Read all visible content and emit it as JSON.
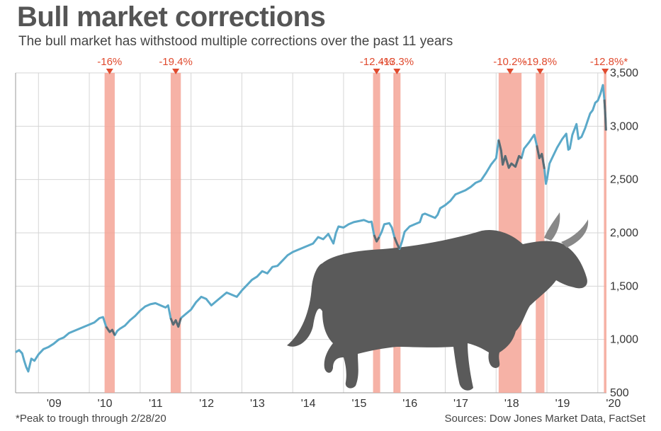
{
  "header": {
    "title": "Bull market corrections",
    "subtitle": "The bull market has withstood multiple corrections over the past 11 years"
  },
  "footer": {
    "footnote": "*Peak to trough through 2/28/20",
    "source": "Sources: Dow Jones Market Data, FactSet"
  },
  "colors": {
    "line": "#5ba9c9",
    "line_in_correction": "#5a6a72",
    "correction_band": "#f4a597",
    "correction_label": "#e04a2e",
    "grid": "#d6d6d6",
    "bull": "#5a5a5a"
  },
  "illustration": {
    "icon": "bull-icon"
  },
  "chart_data": {
    "type": "line",
    "title": "Bull market corrections",
    "subtitle": "The bull market has withstood multiple corrections over the past 11 years",
    "xlim": [
      2008.55,
      2020.17
    ],
    "ylim": [
      500,
      3500
    ],
    "yticks": [
      500,
      1000,
      1500,
      2000,
      2500,
      3000,
      3500
    ],
    "ytick_labels": [
      "500",
      "1,000",
      "1,500",
      "2,000",
      "2,500",
      "3,000",
      "3,500"
    ],
    "xticks": [
      2009,
      2010,
      2011,
      2012,
      2013,
      2014,
      2015,
      2016,
      2017,
      2018,
      2019,
      2020
    ],
    "xtick_labels": [
      "'09",
      "'10",
      "'11",
      "'12",
      "'13",
      "'14",
      "'15",
      "'16",
      "'17",
      "'18",
      "'19",
      "'20"
    ],
    "grid": true,
    "y_axis_position": "right",
    "series": [
      {
        "values": [
          [
            2008.55,
            880
          ],
          [
            2008.62,
            900
          ],
          [
            2008.68,
            870
          ],
          [
            2008.72,
            800
          ],
          [
            2008.76,
            740
          ],
          [
            2008.8,
            700
          ],
          [
            2008.86,
            820
          ],
          [
            2008.92,
            800
          ],
          [
            2009.0,
            860
          ],
          [
            2009.1,
            910
          ],
          [
            2009.2,
            930
          ],
          [
            2009.3,
            960
          ],
          [
            2009.4,
            1000
          ],
          [
            2009.5,
            1020
          ],
          [
            2009.6,
            1060
          ],
          [
            2009.7,
            1080
          ],
          [
            2009.8,
            1100
          ],
          [
            2009.9,
            1120
          ],
          [
            2010.0,
            1140
          ],
          [
            2010.1,
            1160
          ],
          [
            2010.2,
            1200
          ],
          [
            2010.27,
            1210
          ],
          [
            2010.33,
            1120
          ],
          [
            2010.4,
            1070
          ],
          [
            2010.45,
            1090
          ],
          [
            2010.5,
            1040
          ],
          [
            2010.55,
            1080
          ],
          [
            2010.6,
            1100
          ],
          [
            2010.7,
            1130
          ],
          [
            2010.8,
            1180
          ],
          [
            2010.9,
            1220
          ],
          [
            2011.0,
            1270
          ],
          [
            2011.1,
            1310
          ],
          [
            2011.2,
            1330
          ],
          [
            2011.3,
            1340
          ],
          [
            2011.4,
            1320
          ],
          [
            2011.5,
            1300
          ],
          [
            2011.55,
            1320
          ],
          [
            2011.6,
            1200
          ],
          [
            2011.65,
            1140
          ],
          [
            2011.7,
            1180
          ],
          [
            2011.75,
            1120
          ],
          [
            2011.8,
            1200
          ],
          [
            2011.9,
            1240
          ],
          [
            2012.0,
            1280
          ],
          [
            2012.1,
            1350
          ],
          [
            2012.2,
            1400
          ],
          [
            2012.3,
            1380
          ],
          [
            2012.4,
            1320
          ],
          [
            2012.5,
            1360
          ],
          [
            2012.6,
            1400
          ],
          [
            2012.7,
            1440
          ],
          [
            2012.8,
            1420
          ],
          [
            2012.9,
            1400
          ],
          [
            2013.0,
            1460
          ],
          [
            2013.1,
            1510
          ],
          [
            2013.2,
            1560
          ],
          [
            2013.3,
            1590
          ],
          [
            2013.4,
            1640
          ],
          [
            2013.5,
            1620
          ],
          [
            2013.6,
            1680
          ],
          [
            2013.7,
            1690
          ],
          [
            2013.8,
            1740
          ],
          [
            2013.9,
            1790
          ],
          [
            2014.0,
            1820
          ],
          [
            2014.1,
            1840
          ],
          [
            2014.2,
            1860
          ],
          [
            2014.3,
            1880
          ],
          [
            2014.4,
            1900
          ],
          [
            2014.5,
            1960
          ],
          [
            2014.6,
            1940
          ],
          [
            2014.7,
            1990
          ],
          [
            2014.8,
            1900
          ],
          [
            2014.85,
            2000
          ],
          [
            2014.9,
            2060
          ],
          [
            2015.0,
            2050
          ],
          [
            2015.1,
            2080
          ],
          [
            2015.2,
            2100
          ],
          [
            2015.3,
            2110
          ],
          [
            2015.4,
            2120
          ],
          [
            2015.5,
            2100
          ],
          [
            2015.55,
            2105
          ],
          [
            2015.6,
            1980
          ],
          [
            2015.65,
            1920
          ],
          [
            2015.7,
            1960
          ],
          [
            2015.75,
            2010
          ],
          [
            2015.8,
            2080
          ],
          [
            2015.9,
            2090
          ],
          [
            2015.95,
            2050
          ],
          [
            2016.0,
            1960
          ],
          [
            2016.05,
            1900
          ],
          [
            2016.1,
            1850
          ],
          [
            2016.15,
            1920
          ],
          [
            2016.2,
            2010
          ],
          [
            2016.3,
            2060
          ],
          [
            2016.4,
            2080
          ],
          [
            2016.5,
            2100
          ],
          [
            2016.55,
            2170
          ],
          [
            2016.6,
            2180
          ],
          [
            2016.7,
            2160
          ],
          [
            2016.8,
            2140
          ],
          [
            2016.85,
            2170
          ],
          [
            2016.9,
            2230
          ],
          [
            2017.0,
            2260
          ],
          [
            2017.1,
            2300
          ],
          [
            2017.2,
            2360
          ],
          [
            2017.3,
            2380
          ],
          [
            2017.4,
            2400
          ],
          [
            2017.5,
            2430
          ],
          [
            2017.6,
            2470
          ],
          [
            2017.7,
            2490
          ],
          [
            2017.8,
            2560
          ],
          [
            2017.9,
            2640
          ],
          [
            2018.0,
            2700
          ],
          [
            2018.05,
            2870
          ],
          [
            2018.1,
            2770
          ],
          [
            2018.13,
            2640
          ],
          [
            2018.18,
            2720
          ],
          [
            2018.25,
            2610
          ],
          [
            2018.3,
            2650
          ],
          [
            2018.38,
            2620
          ],
          [
            2018.45,
            2720
          ],
          [
            2018.5,
            2700
          ],
          [
            2018.55,
            2790
          ],
          [
            2018.65,
            2850
          ],
          [
            2018.72,
            2900
          ],
          [
            2018.75,
            2920
          ],
          [
            2018.8,
            2820
          ],
          [
            2018.85,
            2700
          ],
          [
            2018.9,
            2740
          ],
          [
            2018.95,
            2600
          ],
          [
            2018.98,
            2460
          ],
          [
            2019.0,
            2500
          ],
          [
            2019.05,
            2650
          ],
          [
            2019.1,
            2700
          ],
          [
            2019.2,
            2800
          ],
          [
            2019.3,
            2880
          ],
          [
            2019.38,
            2930
          ],
          [
            2019.42,
            2780
          ],
          [
            2019.45,
            2790
          ],
          [
            2019.5,
            2920
          ],
          [
            2019.58,
            3020
          ],
          [
            2019.62,
            2880
          ],
          [
            2019.68,
            2900
          ],
          [
            2019.75,
            2980
          ],
          [
            2019.8,
            3050
          ],
          [
            2019.85,
            3120
          ],
          [
            2019.9,
            3150
          ],
          [
            2019.95,
            3220
          ],
          [
            2020.0,
            3240
          ],
          [
            2020.05,
            3300
          ],
          [
            2020.1,
            3386
          ],
          [
            2020.13,
            3250
          ],
          [
            2020.15,
            3080
          ],
          [
            2020.16,
            2960
          ]
        ]
      }
    ],
    "corrections": [
      {
        "label": "-16%",
        "start": 2010.3,
        "end": 2010.5
      },
      {
        "label": "-19.4%",
        "start": 2011.6,
        "end": 2011.8
      },
      {
        "label": "-12.4%",
        "start": 2015.58,
        "end": 2015.72
      },
      {
        "label": "-13.3%",
        "start": 2015.98,
        "end": 2016.12
      },
      {
        "label": "-10.2%",
        "start": 2018.05,
        "end": 2018.5
      },
      {
        "label": "-19.8%",
        "start": 2018.78,
        "end": 2018.95
      },
      {
        "label": "-12.8%*",
        "start": 2020.12,
        "end": 2020.17
      }
    ]
  }
}
